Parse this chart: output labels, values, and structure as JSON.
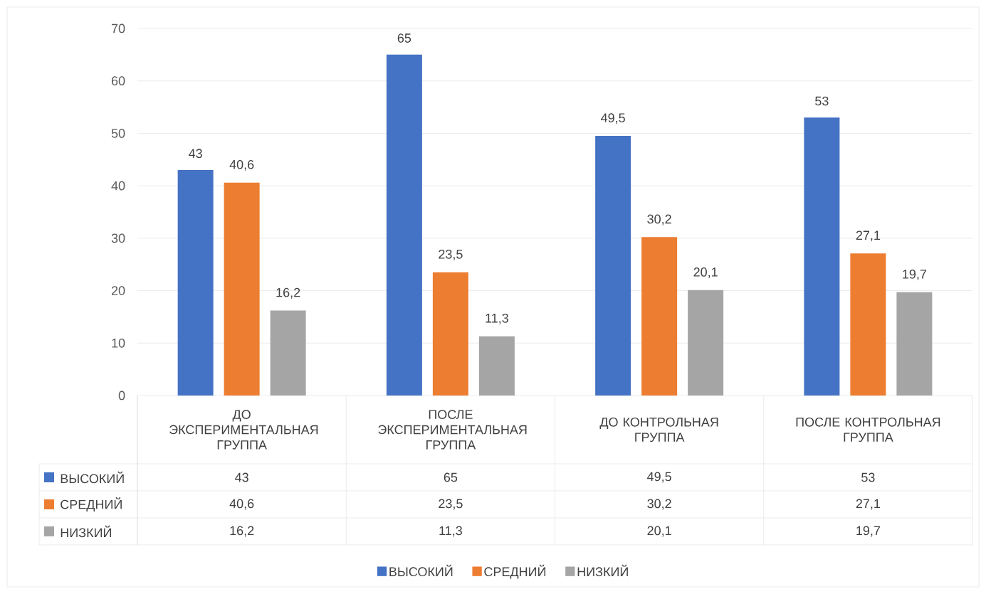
{
  "chart_data": {
    "type": "bar",
    "categories": [
      "ДО ЭКСПЕРИМЕНТАЛЬНАЯ ГРУППА",
      "ПОСЛЕ ЭКСПЕРИМЕНТАЛЬНАЯ ГРУППА",
      "ДО КОНТРОЛЬНАЯ ГРУППА",
      "ПОСЛЕ КОНТРОЛЬНАЯ ГРУППА"
    ],
    "series": [
      {
        "name": "ВЫСОКИЙ",
        "color": "#4472c4",
        "values": [
          43,
          65,
          49.5,
          53
        ],
        "value_labels": [
          "43",
          "65",
          "49,5",
          "53"
        ]
      },
      {
        "name": "СРЕДНИЙ",
        "color": "#ed7d31",
        "values": [
          40.6,
          23.5,
          30.2,
          27.1
        ],
        "value_labels": [
          "40,6",
          "23,5",
          "30,2",
          "27,1"
        ]
      },
      {
        "name": "НИЗКИЙ",
        "color": "#a5a5a5",
        "values": [
          16.2,
          11.3,
          20.1,
          19.7
        ],
        "value_labels": [
          "16,2",
          "11,3",
          "20,1",
          "19,7"
        ]
      }
    ],
    "ylim": [
      0,
      70
    ],
    "yticks": [
      0,
      10,
      20,
      30,
      40,
      50,
      60,
      70
    ],
    "grid": "y",
    "legend": "bottom",
    "data_labels": true
  }
}
